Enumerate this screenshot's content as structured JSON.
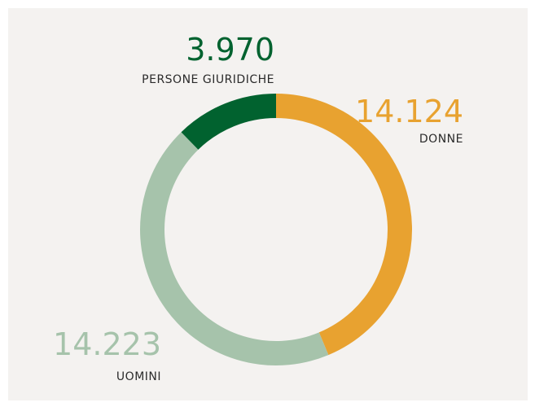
{
  "chart_data": {
    "type": "donut",
    "categories": [
      "DONNE",
      "UOMINI",
      "PERSONE GIURIDICHE"
    ],
    "values": [
      14124,
      14223,
      3970
    ],
    "value_labels": [
      "14.124",
      "14.223",
      "3.970"
    ],
    "colors": [
      "#e8a230",
      "#a6c3ab",
      "#01622f"
    ]
  }
}
